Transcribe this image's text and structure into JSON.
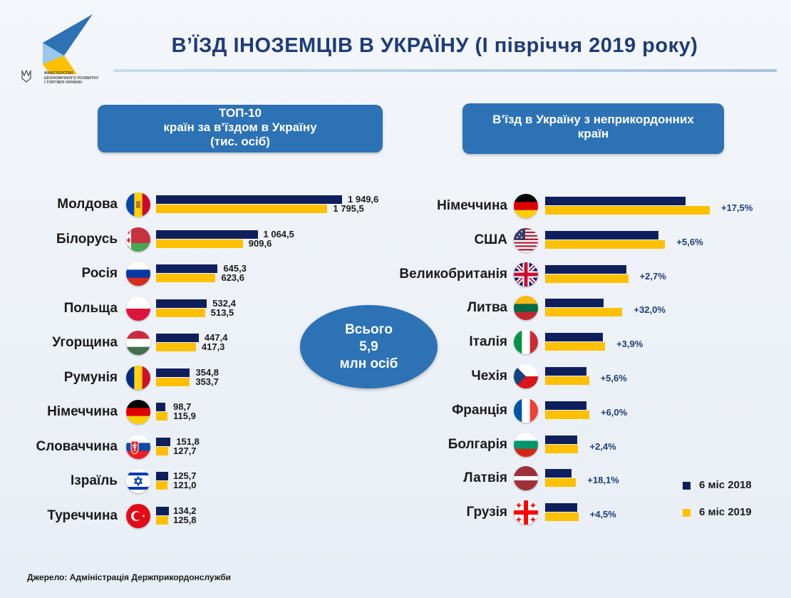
{
  "header": {
    "title": "В’ЇЗД ІНОЗЕМЦІВ В УКРАЇНУ (І півріччя 2019 року)",
    "ministry_line1": "МІНІСТЕРСТВО",
    "ministry_line2": "ЕКОНОМІЧНОГО РОЗВИТКУ",
    "ministry_line3": "І ТОРГІВЛІ УКРАЇНИ"
  },
  "left_panel": {
    "header_line1": "ТОП-10",
    "header_line2": "країн за в’їздом в Україну",
    "header_line3": "(тис. осіб)"
  },
  "right_panel": {
    "header_line1": "В’їзд в Україну з неприкордонних",
    "header_line2": "країн"
  },
  "total": {
    "line1": "Всього",
    "line2": "5,9",
    "line3": "млн осіб"
  },
  "legend": {
    "item_2018": "6 міс 2018",
    "item_2019": "6 міс 2019"
  },
  "source": "Джерело: Адміністрація Держприкордонслужби",
  "colors": {
    "series_2018": "#0f1f5c",
    "series_2019": "#ffc000",
    "accent": "#2d72b5"
  },
  "chart_data": [
    {
      "type": "bar",
      "orientation": "horizontal",
      "title": "ТОП-10 країн за в’їздом в Україну (тис. осіб)",
      "categories": [
        "Молдова",
        "Білорусь",
        "Росія",
        "Польща",
        "Угорщина",
        "Румунія",
        "Німеччина",
        "Словаччина",
        "Ізраїль",
        "Туреччина"
      ],
      "flags": [
        "moldova-flag-icon",
        "belarus-flag-icon",
        "russia-flag-icon",
        "poland-flag-icon",
        "hungary-flag-icon",
        "romania-flag-icon",
        "germany-flag-icon",
        "slovakia-flag-icon",
        "israel-flag-icon",
        "turkey-flag-icon"
      ],
      "series": [
        {
          "name": "6 міс 2018",
          "values": [
            1949.6,
            1064.5,
            645.3,
            532.4,
            447.4,
            354.8,
            98.7,
            151.8,
            125.7,
            134.2
          ],
          "labels": [
            "1 949,6",
            "1 064,5",
            "645,3",
            "532,4",
            "447,4",
            "354,8",
            "98,7",
            "151,8",
            "125,7",
            "134,2"
          ]
        },
        {
          "name": "6 міс 2019",
          "values": [
            1795.5,
            909.6,
            623.6,
            513.5,
            417.3,
            353.7,
            115.9,
            127.7,
            121.0,
            125.8
          ],
          "labels": [
            "1 795,5",
            "909,6",
            "623,6",
            "513,5",
            "417,3",
            "353,7",
            "115,9",
            "127,7",
            "121,0",
            "125,8"
          ]
        }
      ]
    },
    {
      "type": "bar",
      "orientation": "horizontal",
      "title": "В’їзд в Україну з неприкордонних країн",
      "categories": [
        "Німеччина",
        "США",
        "Великобританія",
        "Литва",
        "Італія",
        "Чехія",
        "Франція",
        "Болгарія",
        "Латвія",
        "Грузія"
      ],
      "flags": [
        "germany-flag-icon",
        "usa-flag-icon",
        "uk-flag-icon",
        "lithuania-flag-icon",
        "italy-flag-icon",
        "czechia-flag-icon",
        "france-flag-icon",
        "bulgaria-flag-icon",
        "latvia-flag-icon",
        "georgia-flag-icon"
      ],
      "series": [
        {
          "name": "6 міс 2018",
          "values": [
            98.7,
            80.0,
            57.0,
            41.2,
            40.6,
            29.3,
            29.3,
            22.8,
            18.4,
            22.4
          ]
        },
        {
          "name": "6 міс 2019",
          "values": [
            115.9,
            84.5,
            58.5,
            54.4,
            42.2,
            30.9,
            31.1,
            23.3,
            21.7,
            23.4
          ]
        }
      ],
      "changes": [
        "+17,5%",
        "+5,6%",
        "+2,7%",
        "+32,0%",
        "+3,9%",
        "+5,6%",
        "+6,0%",
        "+2,4%",
        "+18,1%",
        "+4,5%"
      ]
    }
  ]
}
